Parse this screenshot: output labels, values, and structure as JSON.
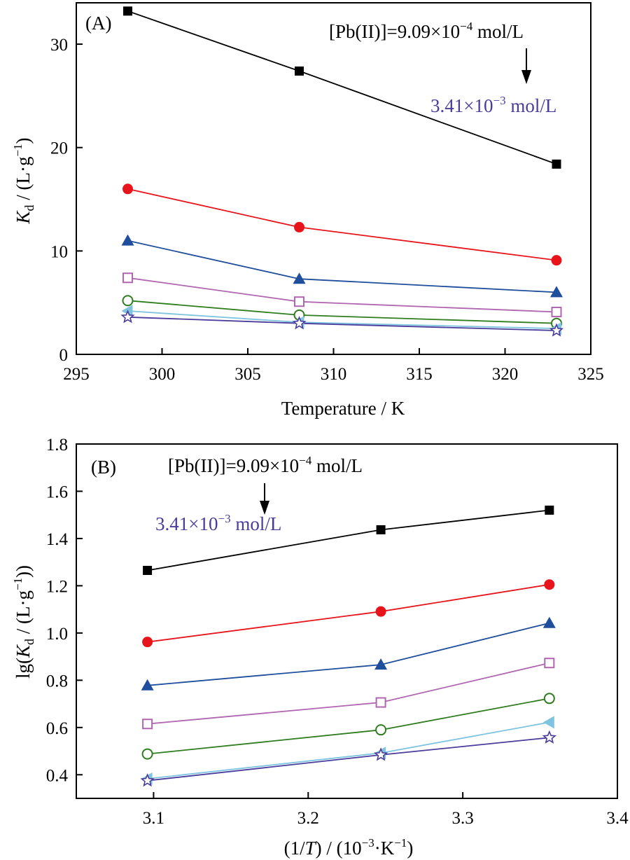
{
  "chart_data": [
    {
      "type": "line",
      "panel_label": "(A)",
      "xlabel_text": "Temperature / K",
      "ylabel_symbol": "K",
      "ylabel_subscript": "d",
      "ylabel_rest": " / (L·g",
      "ylabel_sup": "−1",
      "ylabel_close": ")",
      "xlim": [
        295,
        325
      ],
      "ylim": [
        0,
        34
      ],
      "x_ticks": [
        295,
        300,
        305,
        310,
        315,
        320,
        325
      ],
      "y_ticks": [
        0,
        10,
        20,
        30
      ],
      "x": [
        298,
        308,
        323
      ],
      "annotation_top": {
        "pre": "[Pb(II)]=9.09×10",
        "sup": "−4",
        "post": " mol/L"
      },
      "annotation_bottom": {
        "pre": "3.41×10",
        "sup": "−3",
        "post": " mol/L"
      },
      "series": [
        {
          "values": [
            33.2,
            27.4,
            18.4
          ],
          "color": "#000000",
          "marker": "square-filled"
        },
        {
          "values": [
            16.0,
            12.3,
            9.1
          ],
          "color": "#e8141b",
          "marker": "circle-filled"
        },
        {
          "values": [
            11.0,
            7.3,
            6.0
          ],
          "color": "#1f4e9c",
          "marker": "triangle-up-filled"
        },
        {
          "values": [
            7.4,
            5.1,
            4.1
          ],
          "color": "#b066b0",
          "marker": "square-open"
        },
        {
          "values": [
            5.2,
            3.8,
            3.0
          ],
          "color": "#2f7d1f",
          "marker": "circle-open"
        },
        {
          "values": [
            4.2,
            3.1,
            2.5
          ],
          "color": "#7ec4e0",
          "marker": "triangle-left-filled"
        },
        {
          "values": [
            3.6,
            3.0,
            2.3
          ],
          "color": "#4b3b9b",
          "marker": "star-open"
        }
      ]
    },
    {
      "type": "line",
      "panel_label": "(B)",
      "xlabel_pre": "(1/",
      "xlabel_italic": "T",
      "xlabel_post": ") / (10",
      "xlabel_sup": "−3",
      "xlabel_end": "·K",
      "xlabel_sup2": "−1",
      "xlabel_close": ")",
      "ylabel_pre": "lg(",
      "ylabel_symbol": "K",
      "ylabel_subscript": "d",
      "ylabel_rest": " / (L·g",
      "ylabel_sup": "−1",
      "ylabel_close": "))",
      "xlim": [
        3.05,
        3.4
      ],
      "ylim": [
        0.3,
        1.8
      ],
      "x_ticks": [
        "3.1",
        "3.2",
        "3.3",
        "3.4"
      ],
      "y_ticks": [
        "0.4",
        "0.6",
        "0.8",
        "1.0",
        "1.2",
        "1.4",
        "1.6",
        "1.8"
      ],
      "x": [
        3.096,
        3.247,
        3.356
      ],
      "annotation_top": {
        "pre": "[Pb(II)]=9.09×10",
        "sup": "−4",
        "post": " mol/L"
      },
      "annotation_bottom": {
        "pre": "3.41×10",
        "sup": "−3",
        "post": " mol/L"
      },
      "series": [
        {
          "values": [
            1.265,
            1.437,
            1.52
          ],
          "color": "#000000",
          "marker": "square-filled"
        },
        {
          "values": [
            0.962,
            1.091,
            1.205
          ],
          "color": "#e8141b",
          "marker": "circle-filled"
        },
        {
          "values": [
            0.778,
            0.866,
            1.042
          ],
          "color": "#1f4e9c",
          "marker": "triangle-up-filled"
        },
        {
          "values": [
            0.615,
            0.706,
            0.873
          ],
          "color": "#b066b0",
          "marker": "square-open"
        },
        {
          "values": [
            0.488,
            0.59,
            0.723
          ],
          "color": "#2f7d1f",
          "marker": "circle-open"
        },
        {
          "values": [
            0.383,
            0.492,
            0.622
          ],
          "color": "#7ec4e0",
          "marker": "triangle-left-filled"
        },
        {
          "values": [
            0.375,
            0.484,
            0.557
          ],
          "color": "#4b3b9b",
          "marker": "star-open"
        }
      ]
    }
  ]
}
